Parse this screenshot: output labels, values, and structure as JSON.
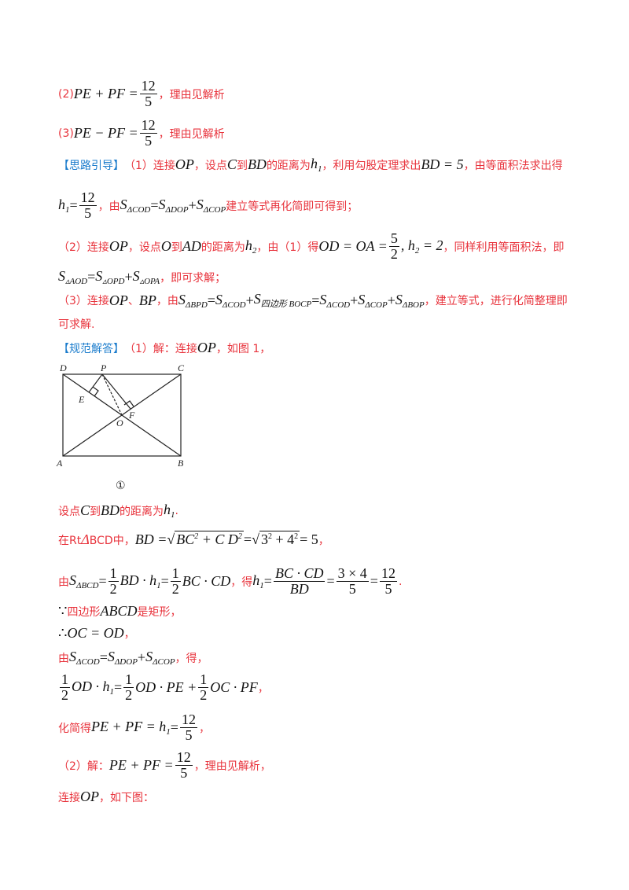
{
  "answer2": {
    "label": "(2)",
    "expr": "PE + PF =",
    "num": "12",
    "den": "5",
    "tail": "，理由见解析"
  },
  "answer3": {
    "label": "(3)",
    "expr": "PE − PF =",
    "num": "12",
    "den": "5",
    "tail": "，理由见解析"
  },
  "hint": {
    "header": "【思路引导】",
    "p1a": "（1）连接",
    "OP": "OP",
    "p1b": "，设点",
    "C": "C",
    "p1c": "到",
    "BD": "BD",
    "p1d": "的距离为",
    "h": "h",
    "sub1": "1",
    "p1e": "，利用勾股定理求出",
    "BDeq": "BD = 5",
    "p1f": "，由等面积法求出得",
    "l2a": "h",
    "l2sub": "1",
    "l2eq": "=",
    "l2num": "12",
    "l2den": "5",
    "l2b": "，由",
    "S": "S",
    "cod": "ΔCOD",
    "dop": "ΔDOP",
    "cop": "ΔCOP",
    "eq": " = ",
    "plus": " + ",
    "l2c": "建立等式再化简即可得到；",
    "p2a": "（2）连接",
    "p2b": "，设点",
    "O": "O",
    "p2c": "到",
    "AD": "AD",
    "p2d": "的距离为",
    "sub2": "2",
    "p2e": "，由（1）得",
    "ODOA": "OD = OA =",
    "p2num": "5",
    "p2den": "2",
    "h2eq": ", h",
    "h2val": " = 2",
    "p2f": "，同样利用等面积法，即",
    "aod": "▵AOD",
    "opd": "▵OPD",
    "opa": "▵OPA",
    "l4b": "，即可求解；",
    "p3a": "（3）连接",
    "p3sep": "、",
    "BP": "BP",
    "p3b": "，由",
    "bpd": "ΔBPD",
    "quad": "四边形 BOCP",
    "bop": "ΔBOP",
    "p3c": "，建立等式，进行化简整理即",
    "p3d": "可求解."
  },
  "solution": {
    "header": "【规范解答】",
    "s1a": "（1）解：连接",
    "s1b": "，如图 1，",
    "figure": {
      "labels": [
        "D",
        "P",
        "C",
        "E",
        "F",
        "O",
        "A",
        "B"
      ],
      "caption": "①"
    },
    "l10a": "设点",
    "l10b": "到",
    "l10c": "的距离为",
    "l10d": ".",
    "l11a": "在Rt",
    "l11tri": "Δ",
    "l11b": "BCD中，",
    "l11bd": "BD =",
    "l11r1": "BC",
    "l11r1b": " + C D",
    "l11eq": " = ",
    "l11r2": "3",
    "l11r2b": " + 4",
    "l11res": " = 5",
    "l11end": "，",
    "l12a": "由",
    "bcd": "ΔBCD",
    "half": "1",
    "two": "2",
    "l12bd": "BD · h",
    "l12bc": "BC · CD",
    "l12b": "，得",
    "l12num": "BC · CD",
    "l12den": "BD",
    "l12n2": "3 × 4",
    "l12d2": "5",
    "l12n3": "12",
    "l12d3": "5",
    "l12end": ".",
    "l13a": "∵",
    "l13b": "四边形",
    "ABCD": "ABCD",
    "l13c": "是矩形，",
    "l14a": "∴",
    "l14eq": "OC = OD",
    "l14end": "，",
    "l15a": "由",
    "l15b": "，得，",
    "l16a": "OD · h",
    "l16b": "OD · PE +",
    "l16c": "OC · PF",
    "l16end": "，",
    "l17a": "化简得",
    "l17eq": "PE + PF = h",
    "l17end": "，",
    "l18a": "（2）解：",
    "l18b": "PE + PF =",
    "l18c": "，理由见解析，",
    "l19a": "连接",
    "l19b": "，如下图："
  },
  "colors": {
    "text_red": "#e8333c",
    "header_blue": "#1b7ccc",
    "math_black": "#111111"
  }
}
